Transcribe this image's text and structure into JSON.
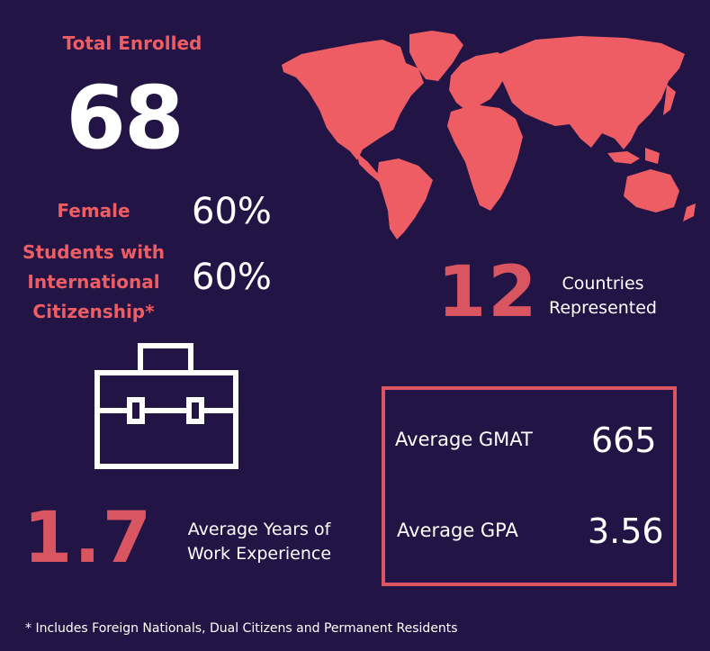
{
  "enrollment": {
    "total_label": "Total Enrolled",
    "total_value": "68"
  },
  "demographics": [
    {
      "label": "Female",
      "value": "60%"
    },
    {
      "label_lines": [
        "Students with",
        "International",
        "Citizenship*"
      ],
      "value": "60%"
    }
  ],
  "countries": {
    "value": "12",
    "label_lines": [
      "Countries",
      "Represented"
    ]
  },
  "experience": {
    "value": "1.7",
    "label_lines": [
      "Average Years of",
      "Work Experience"
    ]
  },
  "scores": {
    "gmat_label": "Average GMAT",
    "gmat_value": "665",
    "gpa_label": "Average GPA",
    "gpa_value": "3.56"
  },
  "footnote": "* Includes Foreign Nationals, Dual Citizens and Permanent Residents",
  "icons": [
    "world-map-icon",
    "briefcase-icon"
  ],
  "colors": {
    "background": "#231446",
    "accent": "#ee5d63",
    "accent_dark": "#d9555f",
    "text": "#ffffff"
  }
}
